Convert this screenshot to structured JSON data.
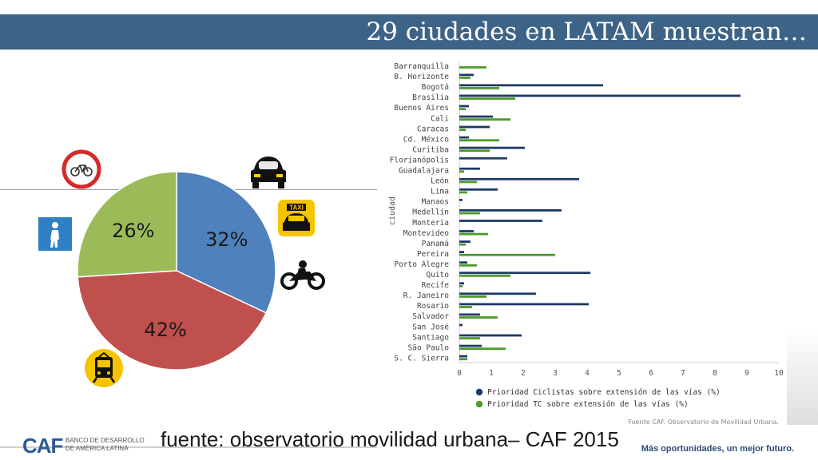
{
  "header": {
    "title": "29 ciudades en LATAM muestran…"
  },
  "chart_data": [
    {
      "type": "pie",
      "slices": [
        {
          "label": "32%",
          "value": 32,
          "mode": "car-taxi-motorcycle",
          "color": "#4f81bd"
        },
        {
          "label": "42%",
          "value": 42,
          "mode": "public-transport",
          "color": "#c0504d"
        },
        {
          "label": "26%",
          "value": 26,
          "mode": "walk-bicycle",
          "color": "#9bbb59"
        }
      ]
    },
    {
      "type": "bar",
      "orientation": "horizontal",
      "ylabel": "ciudad",
      "xlabel": "",
      "xlim": [
        0,
        10
      ],
      "xticks": [
        "0",
        "1",
        "2",
        "3",
        "4",
        "5",
        "6",
        "7",
        "8",
        "9",
        "10"
      ],
      "categories": [
        "Barranquilla",
        "B. Horizonte",
        "Bogotá",
        "Brasilia",
        "Buenos Aires",
        "Cali",
        "Caracas",
        "Cd. México",
        "Curitiba",
        "Florianópolis",
        "Guadalajara",
        "León",
        "Lima",
        "Manaos",
        "Medellín",
        "Montería",
        "Montevideo",
        "Panamá",
        "Pereira",
        "Porto Alegre",
        "Quito",
        "Recife",
        "R. Janeiro",
        "Rosario",
        "Salvador",
        "San José",
        "Santiago",
        "São Paulo",
        "S. C. Sierra"
      ],
      "series": [
        {
          "name": "Prioridad Ciclistas sobre extensión de las vías (%)",
          "color": "#1f3a68",
          "values": [
            0,
            0.45,
            4.5,
            8.8,
            0.3,
            1.05,
            0.95,
            0.3,
            2.05,
            1.5,
            0.65,
            3.75,
            1.2,
            0.1,
            3.2,
            2.6,
            0.45,
            0.35,
            0.15,
            0.25,
            4.1,
            0.15,
            2.4,
            4.05,
            0.65,
            0.1,
            1.95,
            0.7,
            0.25
          ]
        },
        {
          "name": "Prioridad TC sobre extensión de las vías (%)",
          "color": "#4c9a2a",
          "values": [
            0.85,
            0.35,
            1.25,
            1.75,
            0.2,
            1.6,
            0.2,
            1.25,
            0.95,
            0,
            0.15,
            0.55,
            0.25,
            0,
            0.65,
            0,
            0.9,
            0.2,
            3.0,
            0.55,
            1.6,
            0.1,
            0.85,
            0.4,
            1.2,
            0,
            0.65,
            1.45,
            0.25
          ]
        }
      ],
      "source_note": "Fuente CAF. Observatorio de Movilidad Urbana."
    }
  ],
  "icons": {
    "bicycle": "bicycle-sign-icon",
    "pedestrian": "pedestrian-sign-icon",
    "car": "car-icon",
    "taxi": "taxi-icon",
    "motorcycle": "motorcycle-icon",
    "tram": "tram-icon"
  },
  "icon_labels": {
    "taxi": "TAXI"
  },
  "footer": {
    "source": "fuente: observatorio movilidad urbana– CAF 2015",
    "logo_text": "CAF",
    "logo_sub1": "BANCO DE DESARROLLO",
    "logo_sub2": "DE AMÉRICA LATINA",
    "slogan": "Más oportunidades, un mejor futuro."
  }
}
